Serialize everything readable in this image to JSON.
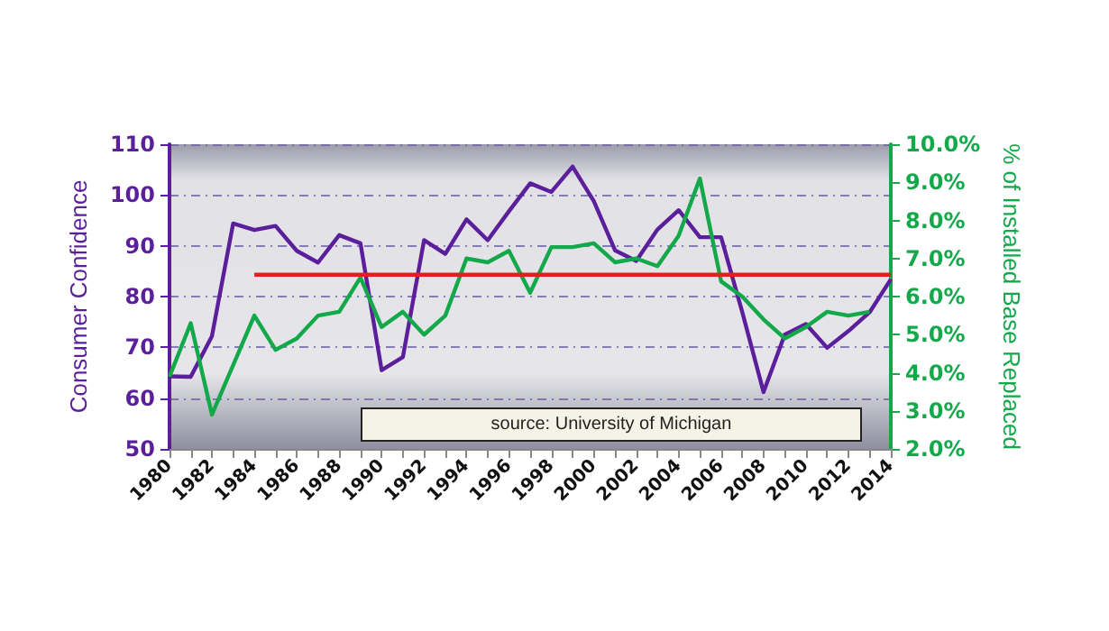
{
  "chart_data": {
    "type": "line",
    "ylabel": "Consumer Confidence",
    "y2label": "% of Installed Base Replaced",
    "categories": [
      "1980",
      null,
      "1982",
      null,
      "1984",
      null,
      "1986",
      null,
      "1988",
      null,
      "1990",
      null,
      "1992",
      null,
      "1994",
      null,
      "1996",
      null,
      "1998",
      null,
      "2000",
      null,
      "2002",
      null,
      "2004",
      null,
      "2006",
      null,
      "2008",
      null,
      "2010",
      null,
      "2012",
      null,
      "2014"
    ],
    "series": [
      {
        "color": "#5b1f9c",
        "values": [
          64.3,
          64.2,
          72.2,
          94.4,
          93.1,
          93.9,
          89.0,
          86.7,
          92.1,
          90.5,
          65.5,
          68.1,
          91.1,
          88.4,
          95.2,
          91.1,
          96.8,
          102.3,
          100.6,
          105.6,
          98.8,
          89.1,
          87.0,
          93.2,
          97.0,
          91.7,
          91.7,
          76.9,
          61.2,
          72.5,
          74.6,
          69.9,
          73.2,
          76.9,
          83.4
        ]
      },
      {
        "color": "#13a84a",
        "axis": "y2",
        "values": [
          3.9,
          5.3,
          2.9,
          4.2,
          5.5,
          4.6,
          4.9,
          5.5,
          5.6,
          6.5,
          5.2,
          5.6,
          5.0,
          5.5,
          7.0,
          6.9,
          7.2,
          6.1,
          7.3,
          7.3,
          7.4,
          6.9,
          7.0,
          6.8,
          7.6,
          9.1,
          6.4,
          6.0,
          5.4,
          4.9,
          5.2,
          5.6,
          5.5,
          5.6,
          null
        ]
      },
      {
        "color": "#e0201c",
        "values": [
          null,
          null,
          null,
          null,
          84.3,
          84.3,
          84.3,
          84.3,
          84.3,
          84.3,
          84.3,
          84.3,
          84.3,
          84.3,
          84.3,
          84.3,
          84.3,
          84.3,
          84.3,
          84.3,
          84.3,
          84.3,
          84.3,
          84.3,
          84.3,
          84.3,
          84.3,
          84.3,
          84.3,
          84.3,
          84.3,
          84.3,
          84.3,
          84.3,
          84.3
        ]
      }
    ],
    "ylim": [
      50,
      110
    ],
    "yticks": [
      50,
      60,
      70,
      80,
      90,
      100,
      110
    ],
    "y2lim": [
      2,
      10
    ],
    "y2ticks": [
      {
        "value": 2,
        "label": "2.0%"
      },
      {
        "value": 3,
        "label": "3.0%"
      },
      {
        "value": 4,
        "label": "4.0%"
      },
      {
        "value": 5,
        "label": "5.0%"
      },
      {
        "value": 6,
        "label": "6.0%"
      },
      {
        "value": 7,
        "label": "7.0%"
      },
      {
        "value": 8,
        "label": "8.0%"
      },
      {
        "value": 9,
        "label": "9.0%"
      },
      {
        "value": 10,
        "label": "10.0%"
      }
    ],
    "grid": "y",
    "marker": "none",
    "line_style": "solid",
    "annotations": [
      "source: University of Michigan"
    ]
  }
}
